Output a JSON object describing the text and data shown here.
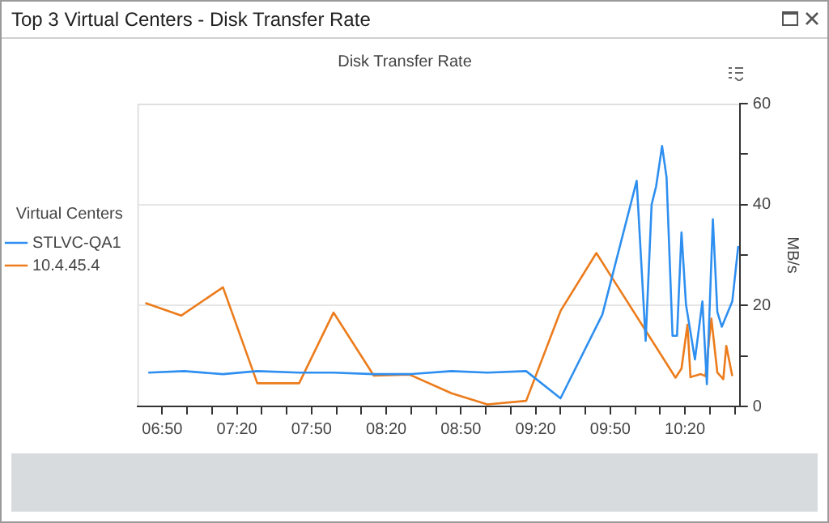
{
  "chart_data": {
    "type": "line",
    "title": "Top 3 Virtual Centers - Disk Transfer Rate",
    "subtitle": "Disk Transfer Rate",
    "y2label": "MB/s",
    "legend_title": "Virtual Centers",
    "legend": "left",
    "grid": "y",
    "marker": "none",
    "line_style": "solid",
    "series": [
      {
        "name": "STLVC-QA1",
        "color": "#2e8ff0",
        "axis": "y2",
        "x": [
          6.74,
          6.98,
          7.24,
          7.47,
          7.75,
          7.98,
          8.25,
          8.49,
          8.77,
          9.01,
          9.27,
          9.5,
          9.78,
          10.01,
          10.07,
          10.11,
          10.14,
          10.18,
          10.21,
          10.25,
          10.28,
          10.31,
          10.34,
          10.4,
          10.45,
          10.48,
          10.52,
          10.55,
          10.58,
          10.65,
          10.69
        ],
        "values": [
          6.7,
          7,
          6.4,
          7,
          6.7,
          6.7,
          6.4,
          6.4,
          7,
          6.7,
          7,
          1.6,
          18.2,
          44.7,
          13,
          40,
          43.6,
          51.6,
          45.4,
          14,
          14,
          34.5,
          20.2,
          9.3,
          20.8,
          4.4,
          37.1,
          18.7,
          15.8,
          20.8,
          31.8
        ]
      },
      {
        "name": "10.4.45.4",
        "color": "#ec7c1c",
        "axis": "y2",
        "x": [
          6.72,
          6.96,
          7.24,
          7.47,
          7.75,
          7.98,
          8.25,
          8.49,
          8.77,
          9.01,
          9.27,
          9.5,
          9.74,
          10.27,
          10.31,
          10.35,
          10.37,
          10.44,
          10.47,
          10.51,
          10.55,
          10.59,
          10.61,
          10.65
        ],
        "values": [
          20.5,
          18,
          23.6,
          4.6,
          4.6,
          18.6,
          6.1,
          6.3,
          2.6,
          0.4,
          1.1,
          18.9,
          30.4,
          5.7,
          7.5,
          16.2,
          5.8,
          6.4,
          6,
          17.4,
          6.7,
          5.4,
          12,
          6
        ]
      }
    ],
    "xlim": [
      6.6667,
      10.7
    ],
    "xticks": [
      {
        "value": 6.8333,
        "label": "06:50"
      },
      {
        "value": 7,
        "label": null
      },
      {
        "value": 7.1667,
        "label": null
      },
      {
        "value": 7.3333,
        "label": "07:20"
      },
      {
        "value": 7.5,
        "label": null
      },
      {
        "value": 7.6667,
        "label": null
      },
      {
        "value": 7.8333,
        "label": "07:50"
      },
      {
        "value": 8,
        "label": null
      },
      {
        "value": 8.1667,
        "label": null
      },
      {
        "value": 8.3333,
        "label": "08:20"
      },
      {
        "value": 8.5,
        "label": null
      },
      {
        "value": 8.6667,
        "label": null
      },
      {
        "value": 8.8333,
        "label": "08:50"
      },
      {
        "value": 9,
        "label": null
      },
      {
        "value": 9.1667,
        "label": null
      },
      {
        "value": 9.3333,
        "label": "09:20"
      },
      {
        "value": 9.5,
        "label": null
      },
      {
        "value": 9.6667,
        "label": null
      },
      {
        "value": 9.8333,
        "label": "09:50"
      },
      {
        "value": 10,
        "label": null
      },
      {
        "value": 10.1667,
        "label": null
      },
      {
        "value": 10.3333,
        "label": "10:20"
      },
      {
        "value": 10.5,
        "label": null
      },
      {
        "value": 10.6667,
        "label": null
      }
    ],
    "y2lim": [
      0,
      60
    ],
    "y2ticks": [
      0,
      {
        "value": 10,
        "label": null
      },
      20,
      {
        "value": 30,
        "label": null
      },
      40,
      {
        "value": 50,
        "label": null
      },
      60
    ]
  }
}
